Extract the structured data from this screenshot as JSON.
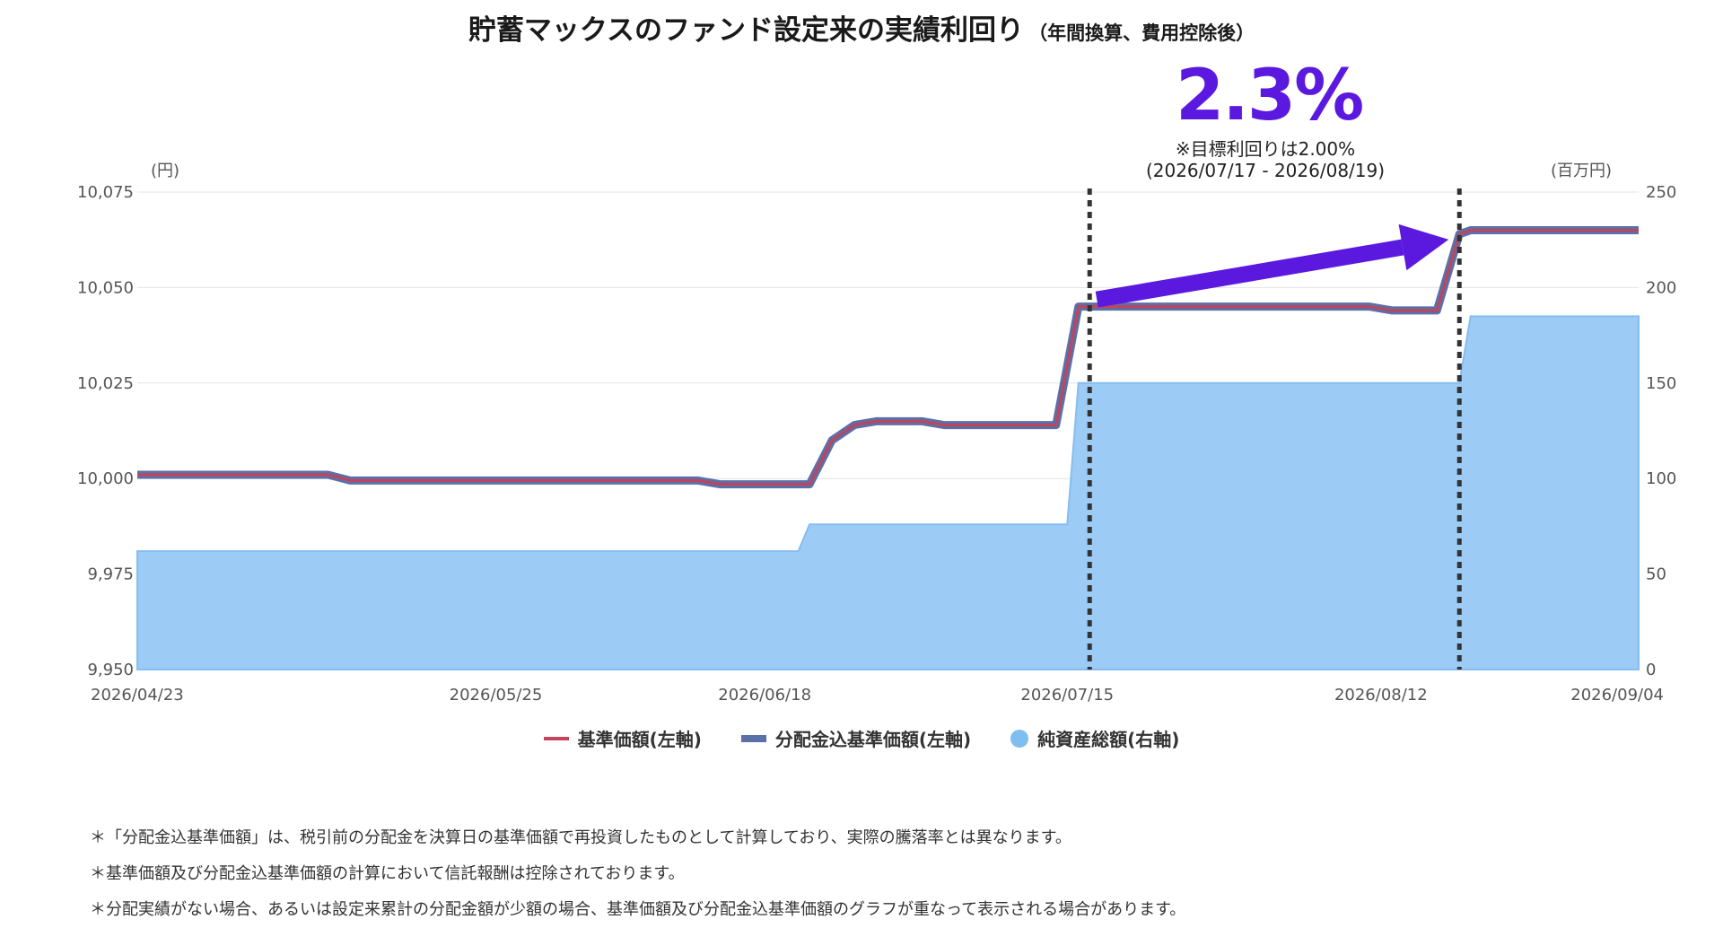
{
  "header": {
    "title": "貯蓄マックスのファンド設定来の実績利回り",
    "subtitle": "（年間換算、費用控除後）"
  },
  "annotation": {
    "yield": "2.3%",
    "target_note": "※目標利回りは2.00%",
    "period": "(2026/07/17 - 2026/08/19)"
  },
  "chart_data": {
    "type": "line",
    "y_left_unit": "(円)",
    "y_right_unit": "(百万円)",
    "y_left_lim": [
      9950,
      10075
    ],
    "y_left_ticks": [
      "9,950",
      "9,975",
      "10,000",
      "10,025",
      "10,050",
      "10,075"
    ],
    "y_left_tick_values": [
      9950,
      9975,
      10000,
      10025,
      10050,
      10075
    ],
    "y_right_lim": [
      0,
      250
    ],
    "y_right_ticks": [
      "0",
      "50",
      "100",
      "150",
      "200",
      "250"
    ],
    "y_right_tick_values": [
      0,
      50,
      100,
      150,
      200,
      250
    ],
    "x_start": "2026-04-23",
    "x_end": "2026-09-04",
    "x_ticks": [
      "2026/04/23",
      "2026/05/25",
      "2026/06/18",
      "2026/07/15",
      "2026/08/12",
      "2026/09/04"
    ],
    "x_tick_dates": [
      "2026-04-23",
      "2026-05-25",
      "2026-06-18",
      "2026-07-15",
      "2026-08-12",
      "2026-09-04"
    ],
    "markers": [
      "2026-07-17",
      "2026-08-19"
    ],
    "series": [
      {
        "name": "基準価額(左軸)",
        "axis": "left",
        "color": "#c0445a",
        "points": [
          [
            "2026-04-23",
            10001
          ],
          [
            "2026-05-10",
            10001
          ],
          [
            "2026-05-12",
            9999.5
          ],
          [
            "2026-06-12",
            9999.5
          ],
          [
            "2026-06-14",
            9998.5
          ],
          [
            "2026-06-22",
            9998.5
          ],
          [
            "2026-06-24",
            10010
          ],
          [
            "2026-06-26",
            10014
          ],
          [
            "2026-06-28",
            10015
          ],
          [
            "2026-07-02",
            10015
          ],
          [
            "2026-07-04",
            10014
          ],
          [
            "2026-07-14",
            10014
          ],
          [
            "2026-07-16",
            10045
          ],
          [
            "2026-08-11",
            10045
          ],
          [
            "2026-08-13",
            10044
          ],
          [
            "2026-08-17",
            10044
          ],
          [
            "2026-08-19",
            10064
          ],
          [
            "2026-08-20",
            10065
          ],
          [
            "2026-09-04",
            10065
          ]
        ]
      },
      {
        "name": "分配金込基準価額(左軸)",
        "axis": "left",
        "color": "#5b6fa8",
        "points": [
          [
            "2026-04-23",
            10001
          ],
          [
            "2026-05-10",
            10001
          ],
          [
            "2026-05-12",
            9999.5
          ],
          [
            "2026-06-12",
            9999.5
          ],
          [
            "2026-06-14",
            9998.5
          ],
          [
            "2026-06-22",
            9998.5
          ],
          [
            "2026-06-24",
            10010
          ],
          [
            "2026-06-26",
            10014
          ],
          [
            "2026-06-28",
            10015
          ],
          [
            "2026-07-02",
            10015
          ],
          [
            "2026-07-04",
            10014
          ],
          [
            "2026-07-14",
            10014
          ],
          [
            "2026-07-16",
            10045
          ],
          [
            "2026-08-11",
            10045
          ],
          [
            "2026-08-13",
            10044
          ],
          [
            "2026-08-17",
            10044
          ],
          [
            "2026-08-19",
            10064
          ],
          [
            "2026-08-20",
            10065
          ],
          [
            "2026-09-04",
            10065
          ]
        ]
      },
      {
        "name": "純資産総額(右軸)",
        "axis": "right",
        "type": "area",
        "color": "#7fbff0",
        "points": [
          [
            "2026-04-23",
            62
          ],
          [
            "2026-06-21",
            62
          ],
          [
            "2026-06-22",
            76
          ],
          [
            "2026-07-15",
            76
          ],
          [
            "2026-07-16",
            150
          ],
          [
            "2026-08-19",
            150
          ],
          [
            "2026-08-20",
            185
          ],
          [
            "2026-09-04",
            185
          ]
        ]
      }
    ]
  },
  "legend": {
    "item1": "基準価額(左軸)",
    "item2": "分配金込基準価額(左軸)",
    "item3": "純資産総額(右軸)"
  },
  "notes": [
    "＊「分配金込基準価額」は、税引前の分配金を決算日の基準価額で再投資したものとして計算しており、実際の騰落率とは異なります。",
    "＊基準価額及び分配金込基準価額の計算において信託報酬は控除されております。",
    "＊分配実績がない場合、あるいは設定来累計の分配金額が少額の場合、基準価額及び分配金込基準価額のグラフが重なって表示される場合があります。"
  ]
}
